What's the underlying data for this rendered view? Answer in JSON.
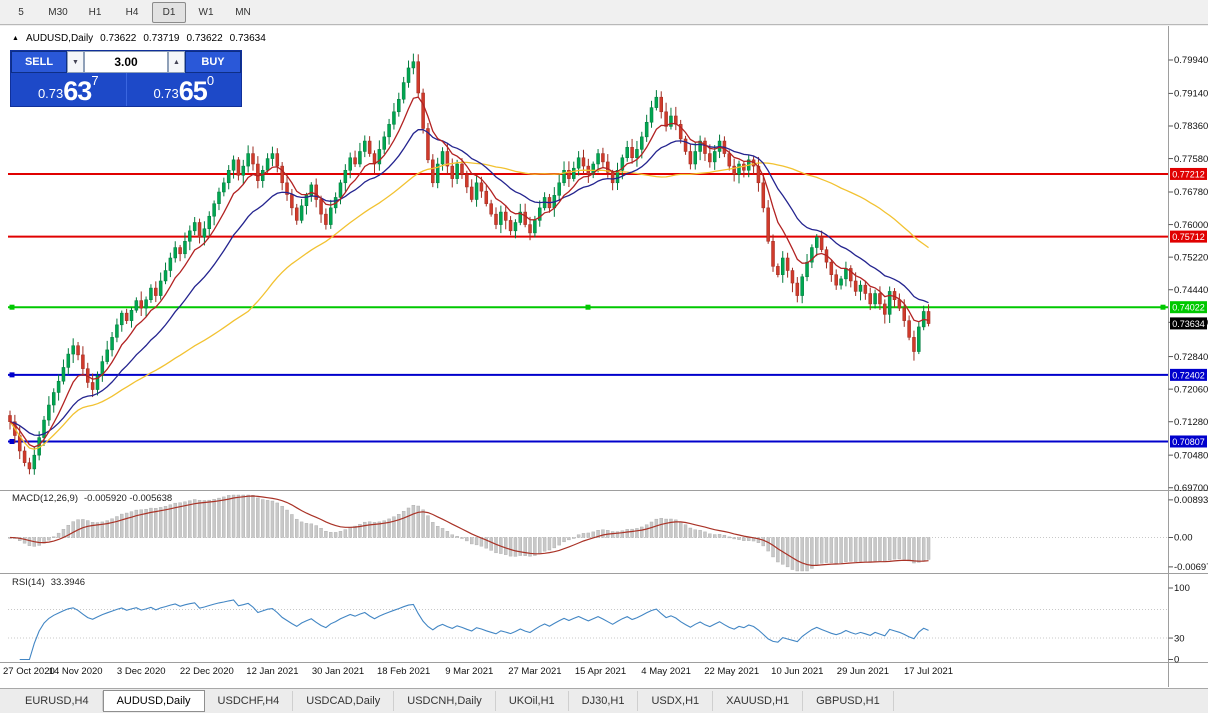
{
  "toolbar": {
    "timeframes": [
      {
        "label": "5",
        "active": false
      },
      {
        "label": "M30",
        "active": false
      },
      {
        "label": "H1",
        "active": false
      },
      {
        "label": "H4",
        "active": false
      },
      {
        "label": "D1",
        "active": true
      },
      {
        "label": "W1",
        "active": false
      },
      {
        "label": "MN",
        "active": false
      }
    ]
  },
  "chart_header": {
    "symbol": "AUDUSD,Daily",
    "open": "0.73622",
    "high": "0.73719",
    "low": "0.73622",
    "close": "0.73634"
  },
  "trade_panel": {
    "sell_label": "SELL",
    "buy_label": "BUY",
    "volume": "3.00",
    "dropdown_icon": "▼",
    "up_icon": "▲",
    "sell_price": {
      "prefix": "0.73",
      "big": "63",
      "sup": "7"
    },
    "buy_price": {
      "prefix": "0.73",
      "big": "65",
      "sup": "0"
    }
  },
  "tabs": [
    {
      "label": "EURUSD,H4",
      "active": false
    },
    {
      "label": "AUDUSD,Daily",
      "active": true
    },
    {
      "label": "USDCHF,H4",
      "active": false
    },
    {
      "label": "USDCAD,Daily",
      "active": false
    },
    {
      "label": "USDCNH,Daily",
      "active": false
    },
    {
      "label": "UKOil,H1",
      "active": false
    },
    {
      "label": "DJ30,H1",
      "active": false
    },
    {
      "label": "USDX,H1",
      "active": false
    },
    {
      "label": "XAUUSD,H1",
      "active": false
    },
    {
      "label": "GBPUSD,H1",
      "active": false
    }
  ],
  "chart_data": {
    "type": "candlestick",
    "symbol": "AUDUSD",
    "period": "Daily",
    "up_color": "#00a651",
    "up_stroke": "#007a3c",
    "down_color": "#d03a2b",
    "down_stroke": "#9e2b20",
    "y_ticks": [
      "0.79940",
      "0.79140",
      "0.78360",
      "0.77580",
      "0.76780",
      "0.76000",
      "0.75220",
      "0.74440",
      "0.73660",
      "0.72840",
      "0.72060",
      "0.71280",
      "0.70480",
      "0.69700"
    ],
    "x_labels": [
      "27 Oct 2020",
      "14 Nov 2020",
      "3 Dec 2020",
      "22 Dec 2020",
      "12 Jan 2021",
      "30 Jan 2021",
      "18 Feb 2021",
      "9 Mar 2021",
      "27 Mar 2021",
      "15 Apr 2021",
      "4 May 2021",
      "22 May 2021",
      "10 Jun 2021",
      "29 Jun 2021",
      "17 Jul 2021"
    ],
    "closes": [
      0.7128,
      0.7095,
      0.7058,
      0.703,
      0.7015,
      0.7048,
      0.709,
      0.7132,
      0.7168,
      0.7198,
      0.7225,
      0.7258,
      0.729,
      0.731,
      0.7288,
      0.7255,
      0.7222,
      0.7205,
      0.7238,
      0.7272,
      0.73,
      0.733,
      0.736,
      0.7388,
      0.737,
      0.7395,
      0.7418,
      0.74,
      0.742,
      0.7448,
      0.743,
      0.7465,
      0.749,
      0.752,
      0.7545,
      0.753,
      0.756,
      0.7585,
      0.7605,
      0.757,
      0.759,
      0.762,
      0.765,
      0.7678,
      0.77,
      0.773,
      0.7755,
      0.7718,
      0.774,
      0.777,
      0.7745,
      0.7705,
      0.773,
      0.7758,
      0.777,
      0.774,
      0.77,
      0.7672,
      0.764,
      0.761,
      0.7645,
      0.767,
      0.7695,
      0.766,
      0.7625,
      0.76,
      0.764,
      0.7665,
      0.77,
      0.773,
      0.776,
      0.7745,
      0.7775,
      0.78,
      0.777,
      0.7745,
      0.778,
      0.781,
      0.784,
      0.787,
      0.79,
      0.794,
      0.7975,
      0.799,
      0.7915,
      0.783,
      0.7755,
      0.77,
      0.7745,
      0.7775,
      0.774,
      0.771,
      0.7745,
      0.772,
      0.769,
      0.766,
      0.77,
      0.768,
      0.765,
      0.7625,
      0.76,
      0.763,
      0.761,
      0.7585,
      0.7605,
      0.763,
      0.76,
      0.758,
      0.761,
      0.764,
      0.7665,
      0.764,
      0.767,
      0.77,
      0.773,
      0.771,
      0.7735,
      0.776,
      0.774,
      0.772,
      0.7745,
      0.777,
      0.775,
      0.7725,
      0.77,
      0.773,
      0.776,
      0.7785,
      0.776,
      0.778,
      0.781,
      0.7845,
      0.788,
      0.7905,
      0.787,
      0.7835,
      0.786,
      0.784,
      0.7805,
      0.7775,
      0.7745,
      0.7775,
      0.78,
      0.777,
      0.775,
      0.7775,
      0.78,
      0.777,
      0.774,
      0.772,
      0.7745,
      0.773,
      0.7755,
      0.774,
      0.77,
      0.764,
      0.756,
      0.75,
      0.748,
      0.752,
      0.749,
      0.746,
      0.743,
      0.7475,
      0.751,
      0.7545,
      0.757,
      0.754,
      0.751,
      0.748,
      0.7455,
      0.747,
      0.7495,
      0.7465,
      0.744,
      0.7455,
      0.7435,
      0.741,
      0.7435,
      0.741,
      0.7385,
      0.744,
      0.742,
      0.74,
      0.737,
      0.733,
      0.7296,
      0.7355,
      0.7392,
      0.7363
    ],
    "moving_averages": [
      {
        "name": "SMA50",
        "period": 50,
        "kind": "sma",
        "color": "#f2c231"
      },
      {
        "name": "EMA20",
        "period": 20,
        "kind": "ema",
        "color": "#24248f"
      },
      {
        "name": "EMA8",
        "period": 8,
        "kind": "ema",
        "color": "#b22222"
      }
    ],
    "horizontal_lines": [
      {
        "price": "0.77212",
        "color": "#e00000",
        "handles": "none"
      },
      {
        "price": "0.75712",
        "color": "#e00000",
        "handles": "none"
      },
      {
        "price": "0.74022",
        "color": "#00c800",
        "handles": "full"
      },
      {
        "price": "0.72402",
        "color": "#0000cc",
        "handles": "left"
      },
      {
        "price": "0.70807",
        "color": "#0000cc",
        "handles": "left"
      }
    ],
    "current_price": {
      "label": "0.73634",
      "value": 0.73634,
      "tag_color": "#000000"
    },
    "macd": {
      "label": "MACD(12,26,9)",
      "values_label": "-0.005920 -0.005638",
      "fast": 12,
      "slow": 26,
      "signal": 9,
      "axis_labels": [
        "0.00893",
        "0.00",
        "-0.00697"
      ],
      "histogram_color": "#c8c8c8",
      "signal_color": "#a93226"
    },
    "rsi": {
      "label": "RSI(14)",
      "value_label": "33.3946",
      "period": 14,
      "axis_labels": [
        "100",
        "30",
        "0"
      ],
      "levels": [
        70,
        30
      ],
      "color": "#4286c4"
    }
  }
}
